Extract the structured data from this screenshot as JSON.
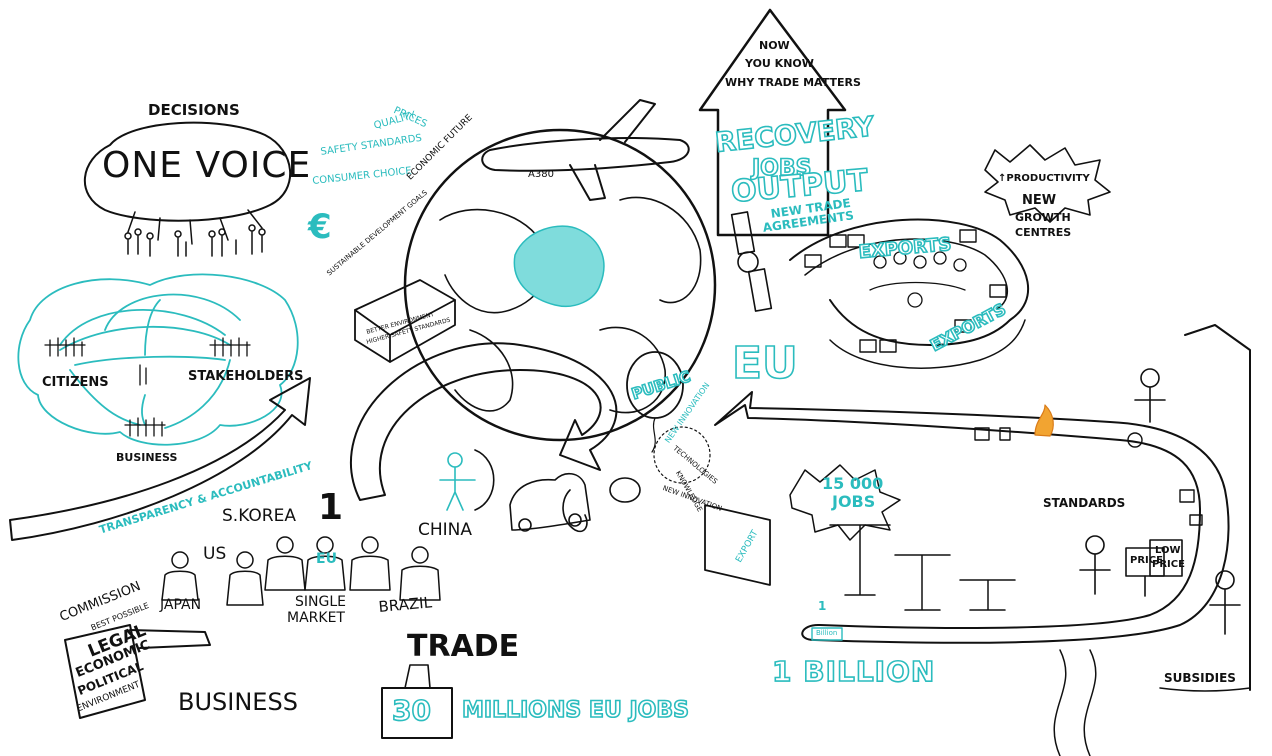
{
  "colors": {
    "accent": "#2bbcbe",
    "ink": "#111111"
  },
  "labels": {
    "decisions": "DECISIONS",
    "one_voice": "ONE VOICE",
    "citizens": "CITIZENS",
    "stakeholders": "STAKEHOLDERS",
    "business_small": "BUSINESS",
    "transparency": "TRANSPARENCY & ACCOUNTABILITY",
    "prices": "PRICES",
    "quality": "QUALITY",
    "safety_standards": "SAFETY STANDARDS",
    "consumer_choice": "CONSUMER CHOICE",
    "economic_future": "ECONOMIC FUTURE",
    "sdg": "SUSTAINABLE DEVELOPMENT GOALS",
    "better_environment": "BETTER ENVIRONMENT",
    "higher_safety": "HIGHER SAFETY STANDARDS",
    "a380": "A380",
    "euro": "€",
    "now_you_know": [
      "NOW",
      "YOU KNOW",
      "WHY TRADE MATTERS"
    ],
    "recovery": "RECOVERY",
    "jobs": "JOBS",
    "output": "OUTPUT",
    "new_trade": "NEW TRADE",
    "agreements": "AGREEMENTS",
    "productivity": "↑PRODUCTIVITY",
    "new": "NEW",
    "growth": "GROWTH",
    "centres": "CENTRES",
    "exports_top": "EXPORTS",
    "exports_bottom": "EXPORTS",
    "eu": "EU",
    "public": "PUBLIC",
    "new_innovation": "NEW INNOVATION",
    "technologies": "TECHNOLOGIES",
    "knowledge": "KNOWLEDGE",
    "export_box": "EXPORT",
    "jobs_15000": "15 000",
    "jobs_15000_label": "JOBS",
    "standards": "STANDARDS",
    "price": "PRICE",
    "low_price": [
      "LOW",
      "PRICE"
    ],
    "one": "1",
    "billion_tag": "Billion",
    "one_billion": "1 BILLION",
    "subsidies": "SUBSIDIES",
    "s_korea": "S.KOREA",
    "number_one": "1",
    "us": "US",
    "china": "CHINA",
    "japan": "JAPAN",
    "eu_small": "EU",
    "single_market": [
      "SINGLE",
      "MARKET"
    ],
    "brazil": "BRAZIL",
    "commission": "COMMISSION",
    "best_possible": "BEST POSSIBLE",
    "legal": "LEGAL",
    "economic": "ECONOMIC",
    "political": "POLITICAL",
    "environment": "ENVIRONMENT",
    "business_big": "BUSINESS",
    "trade": "TRADE",
    "thirty": "30",
    "millions_eu_jobs": "MILLIONS EU JOBS"
  }
}
